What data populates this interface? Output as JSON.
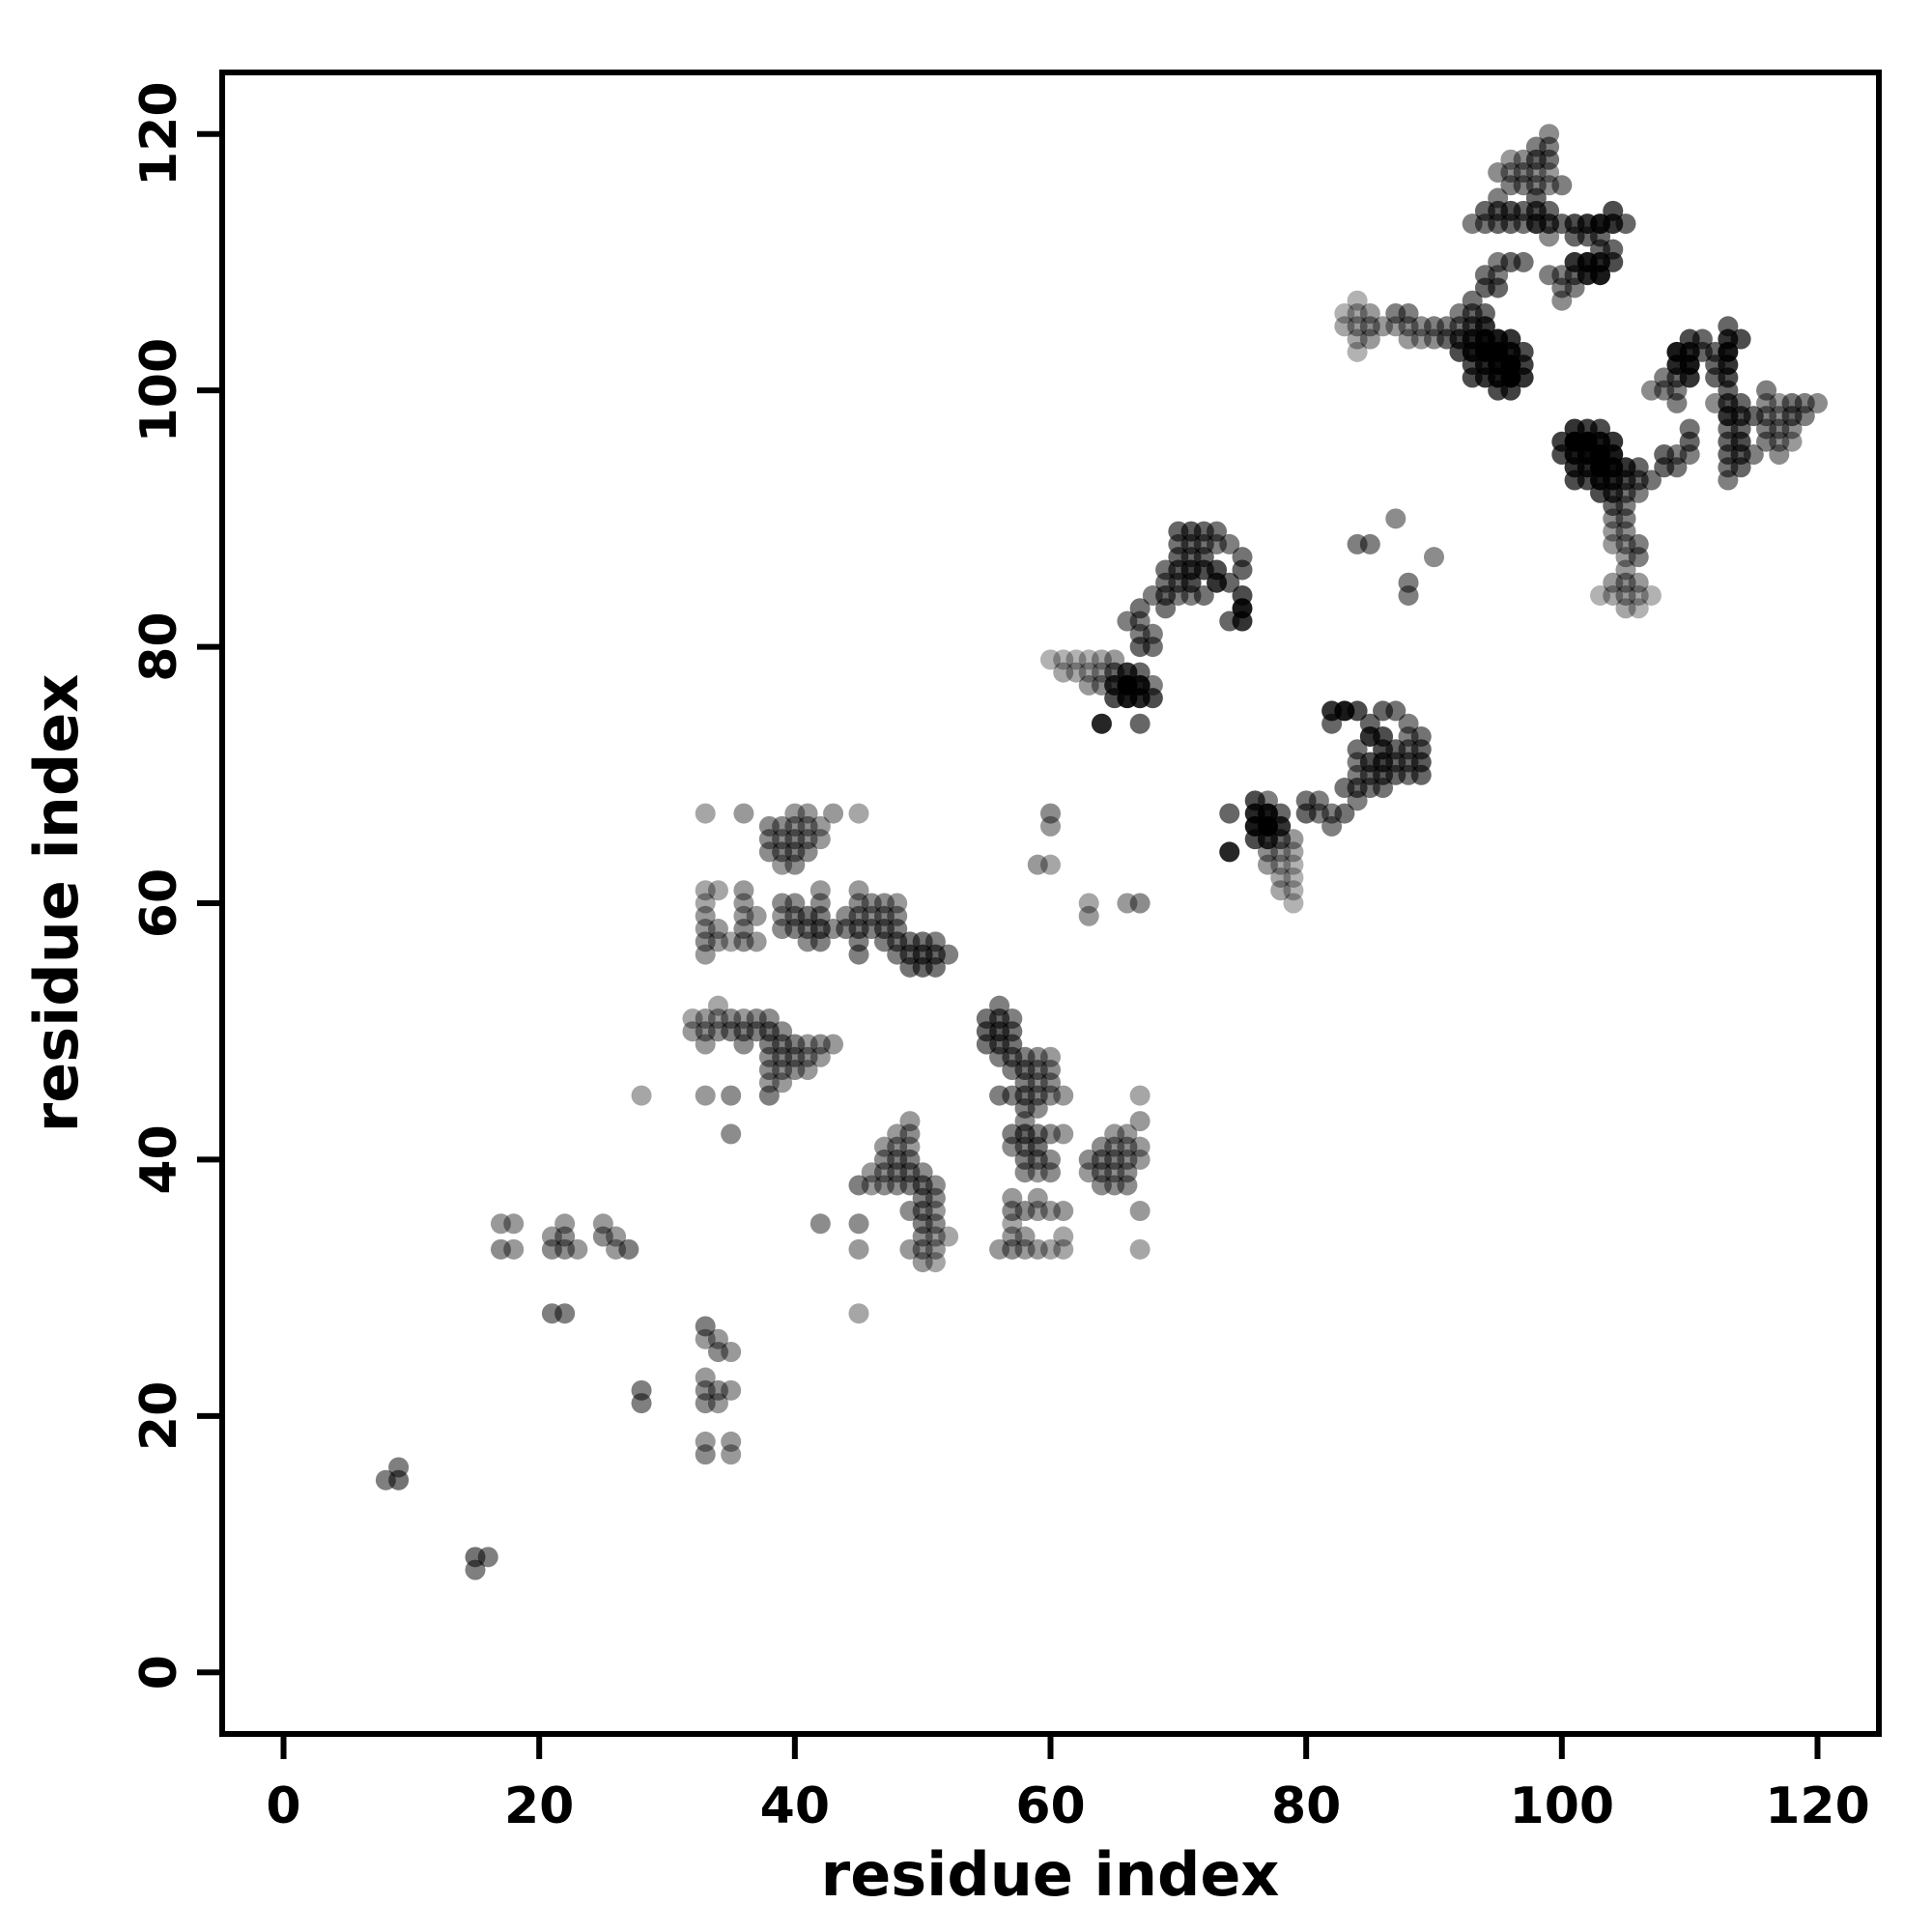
{
  "chart_data": {
    "type": "scatter",
    "title": "",
    "xlabel": "residue index",
    "ylabel": "residue index",
    "xlim": [
      -4.8,
      124.8
    ],
    "ylim": [
      -4.8,
      124.8
    ],
    "x_ticks": [
      0,
      20,
      40,
      60,
      80,
      100,
      120
    ],
    "y_ticks": [
      0,
      20,
      40,
      60,
      80,
      100,
      120
    ],
    "grid": false,
    "legend": "none",
    "marker": "filled-circle",
    "point_color": "#000000",
    "symmetric": true,
    "contacts_format": [
      "residue_i",
      "residue_j",
      "darkness_0_to_1"
    ],
    "contacts": [
      [
        8,
        15,
        0.5
      ],
      [
        9,
        15,
        0.55
      ],
      [
        9,
        16,
        0.5
      ],
      [
        21,
        28,
        0.5
      ],
      [
        22,
        28,
        0.5
      ],
      [
        17,
        33,
        0.45
      ],
      [
        18,
        33,
        0.4
      ],
      [
        17,
        35,
        0.4
      ],
      [
        18,
        35,
        0.4
      ],
      [
        21,
        33,
        0.45
      ],
      [
        21,
        34,
        0.4
      ],
      [
        22,
        33,
        0.45
      ],
      [
        22,
        34,
        0.45
      ],
      [
        22,
        35,
        0.4
      ],
      [
        23,
        33,
        0.4
      ],
      [
        25,
        34,
        0.45
      ],
      [
        25,
        35,
        0.4
      ],
      [
        26,
        33,
        0.4
      ],
      [
        26,
        34,
        0.4
      ],
      [
        27,
        33,
        0.5
      ],
      [
        28,
        45,
        0.35
      ],
      [
        32,
        50,
        0.4
      ],
      [
        32,
        51,
        0.35
      ],
      [
        33,
        45,
        0.4
      ],
      [
        33,
        49,
        0.4
      ],
      [
        33,
        50,
        0.45
      ],
      [
        33,
        51,
        0.4
      ],
      [
        34,
        50,
        0.45
      ],
      [
        34,
        51,
        0.4
      ],
      [
        34,
        52,
        0.35
      ],
      [
        35,
        42,
        0.45
      ],
      [
        35,
        45,
        0.45
      ],
      [
        35,
        50,
        0.5
      ],
      [
        35,
        51,
        0.45
      ],
      [
        36,
        49,
        0.45
      ],
      [
        36,
        50,
        0.5
      ],
      [
        36,
        51,
        0.4
      ],
      [
        37,
        50,
        0.5
      ],
      [
        37,
        51,
        0.45
      ],
      [
        38,
        45,
        0.5
      ],
      [
        38,
        46,
        0.4
      ],
      [
        38,
        47,
        0.45
      ],
      [
        38,
        48,
        0.45
      ],
      [
        38,
        49,
        0.5
      ],
      [
        38,
        50,
        0.55
      ],
      [
        38,
        51,
        0.45
      ],
      [
        39,
        46,
        0.4
      ],
      [
        39,
        47,
        0.45
      ],
      [
        39,
        48,
        0.5
      ],
      [
        39,
        49,
        0.5
      ],
      [
        39,
        50,
        0.45
      ],
      [
        40,
        47,
        0.45
      ],
      [
        40,
        48,
        0.5
      ],
      [
        40,
        49,
        0.5
      ],
      [
        41,
        47,
        0.4
      ],
      [
        41,
        48,
        0.45
      ],
      [
        41,
        49,
        0.4
      ],
      [
        42,
        48,
        0.4
      ],
      [
        42,
        49,
        0.45
      ],
      [
        43,
        49,
        0.4
      ],
      [
        33,
        56,
        0.4
      ],
      [
        33,
        57,
        0.45
      ],
      [
        33,
        58,
        0.4
      ],
      [
        33,
        59,
        0.4
      ],
      [
        33,
        60,
        0.35
      ],
      [
        33,
        61,
        0.35
      ],
      [
        34,
        57,
        0.4
      ],
      [
        34,
        58,
        0.4
      ],
      [
        34,
        61,
        0.35
      ],
      [
        35,
        57,
        0.35
      ],
      [
        36,
        57,
        0.45
      ],
      [
        36,
        58,
        0.45
      ],
      [
        36,
        59,
        0.4
      ],
      [
        36,
        60,
        0.4
      ],
      [
        36,
        61,
        0.4
      ],
      [
        37,
        57,
        0.4
      ],
      [
        37,
        59,
        0.4
      ],
      [
        39,
        58,
        0.45
      ],
      [
        39,
        59,
        0.4
      ],
      [
        39,
        60,
        0.45
      ],
      [
        40,
        58,
        0.5
      ],
      [
        40,
        59,
        0.5
      ],
      [
        40,
        60,
        0.45
      ],
      [
        41,
        57,
        0.45
      ],
      [
        41,
        58,
        0.5
      ],
      [
        41,
        59,
        0.55
      ],
      [
        42,
        57,
        0.5
      ],
      [
        42,
        58,
        0.6
      ],
      [
        42,
        59,
        0.5
      ],
      [
        42,
        60,
        0.45
      ],
      [
        42,
        61,
        0.4
      ],
      [
        43,
        58,
        0.45
      ],
      [
        44,
        58,
        0.5
      ],
      [
        44,
        59,
        0.45
      ],
      [
        45,
        56,
        0.5
      ],
      [
        45,
        57,
        0.5
      ],
      [
        45,
        58,
        0.55
      ],
      [
        45,
        59,
        0.5
      ],
      [
        45,
        60,
        0.45
      ],
      [
        45,
        61,
        0.4
      ],
      [
        46,
        58,
        0.5
      ],
      [
        46,
        59,
        0.45
      ],
      [
        46,
        60,
        0.45
      ],
      [
        47,
        57,
        0.5
      ],
      [
        47,
        58,
        0.55
      ],
      [
        47,
        59,
        0.5
      ],
      [
        47,
        60,
        0.45
      ],
      [
        48,
        56,
        0.5
      ],
      [
        48,
        57,
        0.55
      ],
      [
        48,
        58,
        0.5
      ],
      [
        48,
        59,
        0.45
      ],
      [
        48,
        60,
        0.4
      ],
      [
        49,
        55,
        0.55
      ],
      [
        49,
        56,
        0.6
      ],
      [
        49,
        57,
        0.55
      ],
      [
        50,
        55,
        0.6
      ],
      [
        50,
        56,
        0.65
      ],
      [
        50,
        57,
        0.55
      ],
      [
        51,
        55,
        0.55
      ],
      [
        51,
        56,
        0.6
      ],
      [
        51,
        57,
        0.5
      ],
      [
        52,
        56,
        0.5
      ],
      [
        33,
        67,
        0.35
      ],
      [
        36,
        67,
        0.4
      ],
      [
        38,
        64,
        0.45
      ],
      [
        38,
        65,
        0.45
      ],
      [
        38,
        66,
        0.45
      ],
      [
        39,
        63,
        0.4
      ],
      [
        39,
        64,
        0.5
      ],
      [
        39,
        65,
        0.45
      ],
      [
        39,
        66,
        0.45
      ],
      [
        40,
        63,
        0.45
      ],
      [
        40,
        64,
        0.5
      ],
      [
        40,
        65,
        0.5
      ],
      [
        40,
        66,
        0.45
      ],
      [
        40,
        67,
        0.4
      ],
      [
        41,
        64,
        0.45
      ],
      [
        41,
        65,
        0.45
      ],
      [
        41,
        66,
        0.45
      ],
      [
        41,
        67,
        0.4
      ],
      [
        42,
        65,
        0.4
      ],
      [
        42,
        66,
        0.4
      ],
      [
        43,
        67,
        0.4
      ],
      [
        45,
        67,
        0.35
      ],
      [
        59,
        63,
        0.4
      ],
      [
        60,
        63,
        0.35
      ],
      [
        60,
        66,
        0.4
      ],
      [
        60,
        67,
        0.45
      ],
      [
        60,
        79,
        0.3
      ],
      [
        61,
        78,
        0.35
      ],
      [
        61,
        79,
        0.3
      ],
      [
        62,
        78,
        0.35
      ],
      [
        62,
        79,
        0.3
      ],
      [
        63,
        77,
        0.4
      ],
      [
        63,
        78,
        0.35
      ],
      [
        63,
        79,
        0.3
      ],
      [
        64,
        74,
        0.85
      ],
      [
        64,
        77,
        0.45
      ],
      [
        64,
        78,
        0.4
      ],
      [
        64,
        79,
        0.35
      ],
      [
        65,
        76,
        0.7
      ],
      [
        65,
        77,
        0.8
      ],
      [
        65,
        78,
        0.6
      ],
      [
        65,
        79,
        0.4
      ],
      [
        66,
        76,
        0.9
      ],
      [
        66,
        77,
        1
      ],
      [
        66,
        78,
        0.8
      ],
      [
        67,
        74,
        0.6
      ],
      [
        67,
        76,
        0.85
      ],
      [
        67,
        77,
        0.9
      ],
      [
        67,
        78,
        0.6
      ],
      [
        68,
        76,
        0.7
      ],
      [
        68,
        77,
        0.5
      ],
      [
        66,
        82,
        0.5
      ],
      [
        67,
        80,
        0.6
      ],
      [
        67,
        81,
        0.5
      ],
      [
        67,
        82,
        0.5
      ],
      [
        67,
        83,
        0.55
      ],
      [
        68,
        80,
        0.55
      ],
      [
        68,
        81,
        0.5
      ],
      [
        68,
        84,
        0.5
      ],
      [
        69,
        83,
        0.55
      ],
      [
        69,
        84,
        0.6
      ],
      [
        69,
        85,
        0.55
      ],
      [
        69,
        86,
        0.55
      ],
      [
        70,
        84,
        0.5
      ],
      [
        70,
        85,
        0.6
      ],
      [
        70,
        86,
        0.65
      ],
      [
        70,
        87,
        0.6
      ],
      [
        70,
        88,
        0.55
      ],
      [
        70,
        89,
        0.6
      ],
      [
        71,
        84,
        0.5
      ],
      [
        71,
        85,
        0.7
      ],
      [
        71,
        86,
        0.75
      ],
      [
        71,
        87,
        0.6
      ],
      [
        71,
        88,
        0.6
      ],
      [
        71,
        89,
        0.65
      ],
      [
        72,
        84,
        0.55
      ],
      [
        72,
        86,
        0.7
      ],
      [
        72,
        87,
        0.6
      ],
      [
        72,
        88,
        0.55
      ],
      [
        72,
        89,
        0.6
      ],
      [
        73,
        85,
        0.8
      ],
      [
        73,
        86,
        0.7
      ],
      [
        73,
        88,
        0.5
      ],
      [
        73,
        89,
        0.55
      ],
      [
        74,
        82,
        0.6
      ],
      [
        74,
        85,
        0.6
      ],
      [
        74,
        88,
        0.5
      ],
      [
        75,
        82,
        0.8
      ],
      [
        75,
        83,
        0.9
      ],
      [
        75,
        84,
        0.7
      ],
      [
        75,
        86,
        0.6
      ],
      [
        75,
        87,
        0.55
      ],
      [
        83,
        105,
        0.35
      ],
      [
        83,
        106,
        0.3
      ],
      [
        84,
        103,
        0.3
      ],
      [
        84,
        104,
        0.35
      ],
      [
        84,
        105,
        0.4
      ],
      [
        84,
        106,
        0.35
      ],
      [
        84,
        107,
        0.3
      ],
      [
        85,
        104,
        0.4
      ],
      [
        85,
        105,
        0.45
      ],
      [
        85,
        106,
        0.4
      ],
      [
        86,
        105,
        0.4
      ],
      [
        87,
        105,
        0.4
      ],
      [
        87,
        106,
        0.5
      ],
      [
        88,
        104,
        0.4
      ],
      [
        88,
        105,
        0.45
      ],
      [
        88,
        106,
        0.5
      ],
      [
        89,
        104,
        0.4
      ],
      [
        89,
        105,
        0.45
      ],
      [
        90,
        104,
        0.45
      ],
      [
        90,
        105,
        0.5
      ],
      [
        91,
        105,
        0.5
      ],
      [
        92,
        105,
        0.55
      ],
      [
        91,
        104,
        0.6
      ],
      [
        92,
        103,
        0.7
      ],
      [
        92,
        104,
        0.75
      ],
      [
        92,
        106,
        0.5
      ],
      [
        93,
        101,
        0.7
      ],
      [
        93,
        102,
        0.7
      ],
      [
        93,
        103,
        0.9
      ],
      [
        93,
        104,
        0.85
      ],
      [
        93,
        105,
        0.7
      ],
      [
        93,
        106,
        0.6
      ],
      [
        93,
        107,
        0.55
      ],
      [
        94,
        101,
        0.8
      ],
      [
        94,
        102,
        0.85
      ],
      [
        94,
        103,
        1
      ],
      [
        94,
        104,
        0.95
      ],
      [
        94,
        105,
        0.8
      ],
      [
        94,
        106,
        0.6
      ],
      [
        94,
        108,
        0.6
      ],
      [
        94,
        109,
        0.55
      ],
      [
        95,
        100,
        0.7
      ],
      [
        95,
        101,
        0.9
      ],
      [
        95,
        102,
        0.95
      ],
      [
        95,
        103,
        1
      ],
      [
        95,
        104,
        0.9
      ],
      [
        95,
        108,
        0.6
      ],
      [
        95,
        109,
        0.5
      ],
      [
        95,
        110,
        0.5
      ],
      [
        96,
        100,
        0.75
      ],
      [
        96,
        101,
        1
      ],
      [
        96,
        102,
        1
      ],
      [
        96,
        103,
        0.9
      ],
      [
        96,
        104,
        0.8
      ],
      [
        96,
        110,
        0.6
      ],
      [
        97,
        101,
        0.8
      ],
      [
        97,
        102,
        0.75
      ],
      [
        97,
        103,
        0.7
      ],
      [
        97,
        110,
        0.55
      ],
      [
        93,
        113,
        0.5
      ],
      [
        94,
        113,
        0.55
      ],
      [
        94,
        114,
        0.6
      ],
      [
        95,
        113,
        0.6
      ],
      [
        95,
        114,
        0.65
      ],
      [
        95,
        115,
        0.5
      ],
      [
        95,
        117,
        0.45
      ],
      [
        96,
        113,
        0.6
      ],
      [
        96,
        114,
        0.7
      ],
      [
        96,
        116,
        0.5
      ],
      [
        96,
        117,
        0.45
      ],
      [
        96,
        118,
        0.4
      ],
      [
        97,
        113,
        0.55
      ],
      [
        97,
        114,
        0.6
      ],
      [
        97,
        116,
        0.5
      ],
      [
        97,
        117,
        0.5
      ],
      [
        97,
        118,
        0.45
      ],
      [
        98,
        113,
        0.8
      ],
      [
        98,
        114,
        0.7
      ],
      [
        98,
        115,
        0.6
      ],
      [
        98,
        116,
        0.5
      ],
      [
        98,
        117,
        0.45
      ],
      [
        98,
        118,
        0.6
      ],
      [
        98,
        119,
        0.5
      ],
      [
        99,
        112,
        0.45
      ],
      [
        99,
        113,
        0.7
      ],
      [
        99,
        114,
        0.6
      ],
      [
        99,
        116,
        0.45
      ],
      [
        99,
        117,
        0.4
      ],
      [
        99,
        118,
        0.55
      ],
      [
        99,
        119,
        0.5
      ],
      [
        99,
        120,
        0.45
      ],
      [
        100,
        113,
        0.6
      ],
      [
        100,
        116,
        0.5
      ],
      [
        99,
        109,
        0.5
      ],
      [
        100,
        107,
        0.45
      ],
      [
        100,
        108,
        0.5
      ],
      [
        100,
        109,
        0.5
      ],
      [
        101,
        108,
        0.5
      ],
      [
        101,
        109,
        0.6
      ],
      [
        101,
        110,
        0.8
      ],
      [
        101,
        112,
        0.6
      ],
      [
        101,
        113,
        0.7
      ],
      [
        102,
        109,
        0.85
      ],
      [
        102,
        110,
        0.9
      ],
      [
        102,
        112,
        0.6
      ],
      [
        102,
        113,
        0.8
      ],
      [
        103,
        109,
        0.9
      ],
      [
        103,
        110,
        0.85
      ],
      [
        103,
        111,
        0.6
      ],
      [
        103,
        112,
        0.6
      ],
      [
        103,
        113,
        0.9
      ],
      [
        104,
        110,
        0.7
      ],
      [
        104,
        111,
        0.6
      ],
      [
        104,
        113,
        0.8
      ],
      [
        104,
        114,
        0.7
      ],
      [
        105,
        113,
        0.6
      ],
      [
        84,
        88,
        0.5
      ],
      [
        85,
        88,
        0.5
      ],
      [
        87,
        90,
        0.45
      ]
    ]
  }
}
